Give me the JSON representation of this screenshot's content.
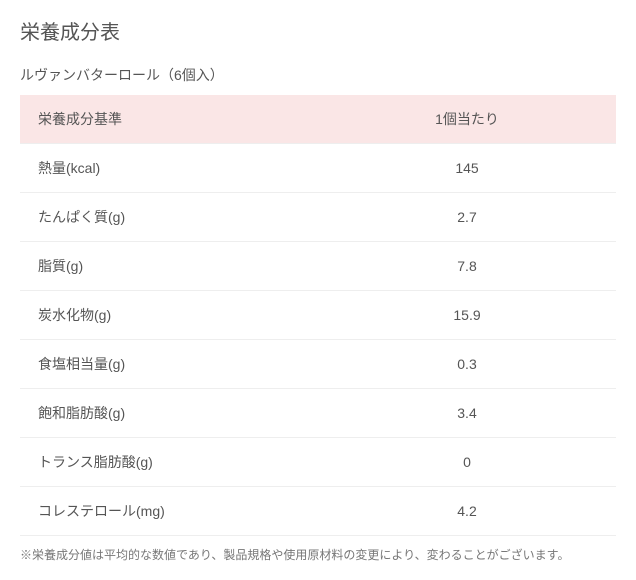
{
  "page_title": "栄養成分表",
  "product_name": "ルヴァンバターロール（6個入）",
  "table": {
    "header": {
      "col1": "栄養成分基準",
      "col2": "1個当たり"
    },
    "rows": [
      {
        "label": "熱量(kcal)",
        "value": "145"
      },
      {
        "label": "たんぱく質(g)",
        "value": "2.7"
      },
      {
        "label": "脂質(g)",
        "value": "7.8"
      },
      {
        "label": "炭水化物(g)",
        "value": "15.9"
      },
      {
        "label": "食塩相当量(g)",
        "value": "0.3"
      },
      {
        "label": "飽和脂肪酸(g)",
        "value": "3.4"
      },
      {
        "label": "トランス脂肪酸(g)",
        "value": "0"
      },
      {
        "label": "コレステロール(mg)",
        "value": "4.2"
      }
    ]
  },
  "footnote": "※栄養成分値は平均的な数値であり、製品規格や使用原材料の変更により、変わることがございます。",
  "colors": {
    "header_bg": "#fae6e6",
    "text": "#555555",
    "border": "#eeeeee",
    "footnote": "#777777"
  }
}
